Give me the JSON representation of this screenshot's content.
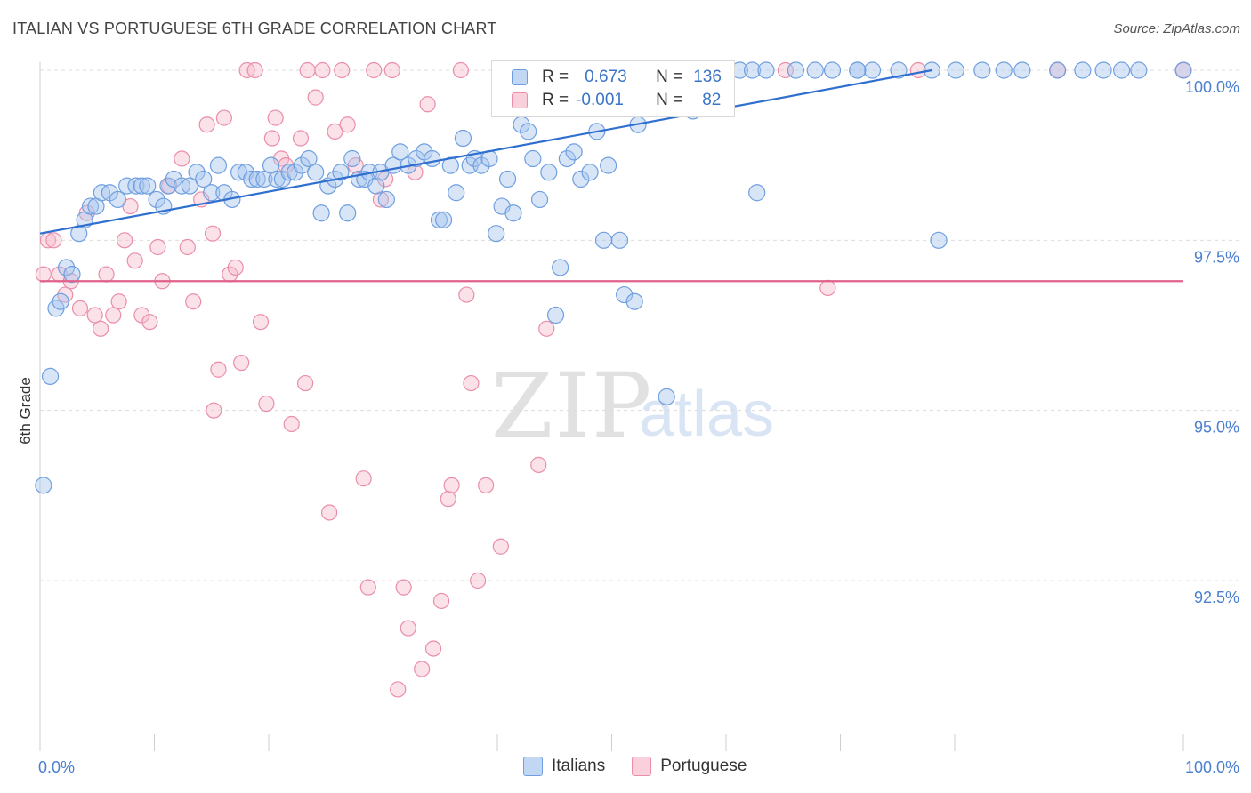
{
  "header": {
    "title": "ITALIAN VS PORTUGUESE 6TH GRADE CORRELATION CHART",
    "source": "Source: ZipAtlas.com"
  },
  "watermark": {
    "zip": "ZIP",
    "atlas": "atlas"
  },
  "legend_box": {
    "italians": {
      "r_label": "R =",
      "r_value": "0.673",
      "n_label": "N =",
      "n_value": "136"
    },
    "portuguese": {
      "r_label": "R =",
      "r_value": "-0.001",
      "n_label": "N =",
      "n_value": "82"
    }
  },
  "bottom_legend": {
    "italians": "Italians",
    "portuguese": "Portuguese"
  },
  "colors": {
    "italians_fill": "#a9c6ee",
    "italians_stroke": "#6f9fe0",
    "italians_line": "#2f6fcf",
    "portuguese_fill": "#f6bccd",
    "portuguese_stroke": "#ea8eaa",
    "portuguese_line": "#e0628b",
    "axis_text": "#4a7fd0"
  },
  "chart_data": {
    "type": "scatter",
    "title": "ITALIAN VS PORTUGUESE 6TH GRADE CORRELATION CHART",
    "xlabel": "",
    "ylabel": "6th Grade",
    "xlim": [
      0,
      100
    ],
    "ylim": [
      90.4,
      100.5
    ],
    "x_tick_labels": [
      "0.0%",
      "100.0%"
    ],
    "y_ticks": [
      92.5,
      95.0,
      97.5,
      100.0
    ],
    "y_tick_labels": [
      "92.5%",
      "95.0%",
      "97.5%",
      "100.0%"
    ],
    "grid": true,
    "legend_position": "top-center",
    "series": [
      {
        "name": "Italians",
        "r": 0.673,
        "n": 136,
        "trend": [
          [
            0.0,
            97.6
          ],
          [
            78.0,
            100.0
          ]
        ],
        "points": [
          [
            0.3,
            93.9
          ],
          [
            0.9,
            95.5
          ],
          [
            1.4,
            96.5
          ],
          [
            1.8,
            96.6
          ],
          [
            2.3,
            97.1
          ],
          [
            2.8,
            97.0
          ],
          [
            3.4,
            97.6
          ],
          [
            3.9,
            97.8
          ],
          [
            4.4,
            98.0
          ],
          [
            4.9,
            98.0
          ],
          [
            5.4,
            98.2
          ],
          [
            6.1,
            98.2
          ],
          [
            6.8,
            98.1
          ],
          [
            7.6,
            98.3
          ],
          [
            8.4,
            98.3
          ],
          [
            8.9,
            98.3
          ],
          [
            9.4,
            98.3
          ],
          [
            10.2,
            98.1
          ],
          [
            10.8,
            98.0
          ],
          [
            11.2,
            98.3
          ],
          [
            11.7,
            98.4
          ],
          [
            12.4,
            98.3
          ],
          [
            13.1,
            98.3
          ],
          [
            13.7,
            98.5
          ],
          [
            14.3,
            98.4
          ],
          [
            15.0,
            98.2
          ],
          [
            15.6,
            98.6
          ],
          [
            16.1,
            98.2
          ],
          [
            16.8,
            98.1
          ],
          [
            17.4,
            98.5
          ],
          [
            18.0,
            98.5
          ],
          [
            18.5,
            98.4
          ],
          [
            19.0,
            98.4
          ],
          [
            19.6,
            98.4
          ],
          [
            20.2,
            98.6
          ],
          [
            20.7,
            98.4
          ],
          [
            21.2,
            98.4
          ],
          [
            21.8,
            98.5
          ],
          [
            22.3,
            98.5
          ],
          [
            22.9,
            98.6
          ],
          [
            23.5,
            98.7
          ],
          [
            24.1,
            98.5
          ],
          [
            24.6,
            97.9
          ],
          [
            25.2,
            98.3
          ],
          [
            25.8,
            98.4
          ],
          [
            26.3,
            98.5
          ],
          [
            26.9,
            97.9
          ],
          [
            27.3,
            98.7
          ],
          [
            27.9,
            98.4
          ],
          [
            28.4,
            98.4
          ],
          [
            28.8,
            98.5
          ],
          [
            29.4,
            98.3
          ],
          [
            29.8,
            98.5
          ],
          [
            30.3,
            98.1
          ],
          [
            30.9,
            98.6
          ],
          [
            31.5,
            98.8
          ],
          [
            32.2,
            98.6
          ],
          [
            32.9,
            98.7
          ],
          [
            33.6,
            98.8
          ],
          [
            34.3,
            98.7
          ],
          [
            34.9,
            97.8
          ],
          [
            35.3,
            97.8
          ],
          [
            35.9,
            98.6
          ],
          [
            36.4,
            98.2
          ],
          [
            37.0,
            99.0
          ],
          [
            37.6,
            98.6
          ],
          [
            38.0,
            98.7
          ],
          [
            38.6,
            98.6
          ],
          [
            39.3,
            98.7
          ],
          [
            39.9,
            97.6
          ],
          [
            40.4,
            98.0
          ],
          [
            40.9,
            98.4
          ],
          [
            41.4,
            97.9
          ],
          [
            42.1,
            99.2
          ],
          [
            42.7,
            99.1
          ],
          [
            43.1,
            98.7
          ],
          [
            43.7,
            98.1
          ],
          [
            44.5,
            98.5
          ],
          [
            45.1,
            96.4
          ],
          [
            45.5,
            97.1
          ],
          [
            46.1,
            98.7
          ],
          [
            46.7,
            98.8
          ],
          [
            47.3,
            98.4
          ],
          [
            48.1,
            98.5
          ],
          [
            48.7,
            99.1
          ],
          [
            49.7,
            98.6
          ],
          [
            50.7,
            97.5
          ],
          [
            51.1,
            96.7
          ],
          [
            51.7,
            100.0
          ],
          [
            52.3,
            99.2
          ],
          [
            53.5,
            100.0
          ],
          [
            54.8,
            95.2
          ],
          [
            56.0,
            100.0
          ],
          [
            57.1,
            99.4
          ],
          [
            58.5,
            100.0
          ],
          [
            60.0,
            100.0
          ],
          [
            61.2,
            100.0
          ],
          [
            62.3,
            100.0
          ],
          [
            63.5,
            100.0
          ],
          [
            66.1,
            100.0
          ],
          [
            67.8,
            100.0
          ],
          [
            69.3,
            100.0
          ],
          [
            71.5,
            100.0
          ],
          [
            72.8,
            100.0
          ],
          [
            75.1,
            100.0
          ],
          [
            78.0,
            100.0
          ],
          [
            80.1,
            100.0
          ],
          [
            82.4,
            100.0
          ],
          [
            84.3,
            100.0
          ],
          [
            85.9,
            100.0
          ],
          [
            89.0,
            100.0
          ],
          [
            91.2,
            100.0
          ],
          [
            93.0,
            100.0
          ],
          [
            94.6,
            100.0
          ],
          [
            96.1,
            100.0
          ],
          [
            100.0,
            100.0
          ],
          [
            78.6,
            97.5
          ],
          [
            71.5,
            100.0
          ],
          [
            62.7,
            98.2
          ],
          [
            49.3,
            97.5
          ],
          [
            52.0,
            96.6
          ]
        ]
      },
      {
        "name": "Portuguese",
        "r": -0.001,
        "n": 82,
        "trend": [
          [
            0.0,
            96.9
          ],
          [
            100.0,
            96.9
          ]
        ],
        "points": [
          [
            0.3,
            97.0
          ],
          [
            0.7,
            97.5
          ],
          [
            1.2,
            97.5
          ],
          [
            1.7,
            97.0
          ],
          [
            2.2,
            96.7
          ],
          [
            2.7,
            96.9
          ],
          [
            3.5,
            96.5
          ],
          [
            4.1,
            97.9
          ],
          [
            4.8,
            96.4
          ],
          [
            5.3,
            96.2
          ],
          [
            5.8,
            97.0
          ],
          [
            6.4,
            96.4
          ],
          [
            6.9,
            96.6
          ],
          [
            7.4,
            97.5
          ],
          [
            7.9,
            98.0
          ],
          [
            8.3,
            97.2
          ],
          [
            8.9,
            96.4
          ],
          [
            9.6,
            96.3
          ],
          [
            10.3,
            97.4
          ],
          [
            10.7,
            96.9
          ],
          [
            11.3,
            98.3
          ],
          [
            12.4,
            98.7
          ],
          [
            12.9,
            97.4
          ],
          [
            13.4,
            96.6
          ],
          [
            14.1,
            98.1
          ],
          [
            14.6,
            99.2
          ],
          [
            15.1,
            97.6
          ],
          [
            15.6,
            95.6
          ],
          [
            16.1,
            99.3
          ],
          [
            16.6,
            97.0
          ],
          [
            17.1,
            97.1
          ],
          [
            17.6,
            95.7
          ],
          [
            18.1,
            100.0
          ],
          [
            18.8,
            100.0
          ],
          [
            19.3,
            96.3
          ],
          [
            19.8,
            95.1
          ],
          [
            20.3,
            99.0
          ],
          [
            20.6,
            99.3
          ],
          [
            21.1,
            98.7
          ],
          [
            21.5,
            98.6
          ],
          [
            22.0,
            94.8
          ],
          [
            22.8,
            99.0
          ],
          [
            23.2,
            95.4
          ],
          [
            23.4,
            100.0
          ],
          [
            24.1,
            99.6
          ],
          [
            24.7,
            100.0
          ],
          [
            25.3,
            93.5
          ],
          [
            25.8,
            99.1
          ],
          [
            26.4,
            100.0
          ],
          [
            26.9,
            99.2
          ],
          [
            27.6,
            98.6
          ],
          [
            28.3,
            94.0
          ],
          [
            28.7,
            92.4
          ],
          [
            29.2,
            100.0
          ],
          [
            29.8,
            98.1
          ],
          [
            30.2,
            98.4
          ],
          [
            30.8,
            100.0
          ],
          [
            31.3,
            90.9
          ],
          [
            31.8,
            92.4
          ],
          [
            32.2,
            91.8
          ],
          [
            32.8,
            98.5
          ],
          [
            33.4,
            91.2
          ],
          [
            33.9,
            99.5
          ],
          [
            34.4,
            91.5
          ],
          [
            35.1,
            92.2
          ],
          [
            35.7,
            93.7
          ],
          [
            36.0,
            93.9
          ],
          [
            36.8,
            100.0
          ],
          [
            37.3,
            96.7
          ],
          [
            37.7,
            95.4
          ],
          [
            38.3,
            92.5
          ],
          [
            39.0,
            93.9
          ],
          [
            40.3,
            93.0
          ],
          [
            43.6,
            94.2
          ],
          [
            44.3,
            96.2
          ],
          [
            47.0,
            100.0
          ],
          [
            65.2,
            100.0
          ],
          [
            68.9,
            96.8
          ],
          [
            76.8,
            100.0
          ],
          [
            89.0,
            100.0
          ],
          [
            100.0,
            100.0
          ],
          [
            15.2,
            95.0
          ]
        ]
      }
    ]
  }
}
